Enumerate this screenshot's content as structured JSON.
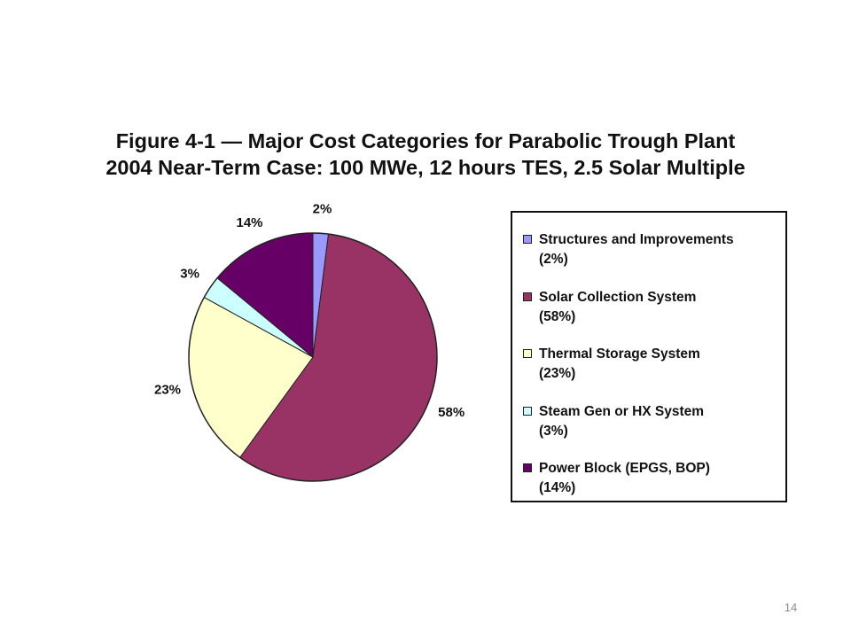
{
  "slide": {
    "title_line1": "Figure 4-1 — Major Cost Categories for Parabolic Trough Plant",
    "title_line2": "2004 Near-Term Case: 100 MWe, 12 hours TES, 2.5 Solar Multiple",
    "page_number": "14"
  },
  "chart_data": {
    "type": "pie",
    "title": "Figure 4-1 — Major Cost Categories for Parabolic Trough Plant 2004 Near-Term Case: 100 MWe, 12 hours TES, 2.5 Solar Multiple",
    "legend_position": "right",
    "slices": [
      {
        "name": "Structures and Improvements",
        "value": 2,
        "label": "2%",
        "legend_pct": "(2%)",
        "color": "#9999ff"
      },
      {
        "name": "Solar Collection System",
        "value": 58,
        "label": "58%",
        "legend_pct": "(58%)",
        "color": "#993366"
      },
      {
        "name": "Thermal Storage System",
        "value": 23,
        "label": "23%",
        "legend_pct": "(23%)",
        "color": "#ffffcc"
      },
      {
        "name": "Steam Gen or HX System",
        "value": 3,
        "label": "3%",
        "legend_pct": "(3%)",
        "color": "#ccffff"
      },
      {
        "name": "Power Block (EPGS, BOP)",
        "value": 14,
        "label": "14%",
        "legend_pct": "(14%)",
        "color": "#660066"
      }
    ]
  }
}
